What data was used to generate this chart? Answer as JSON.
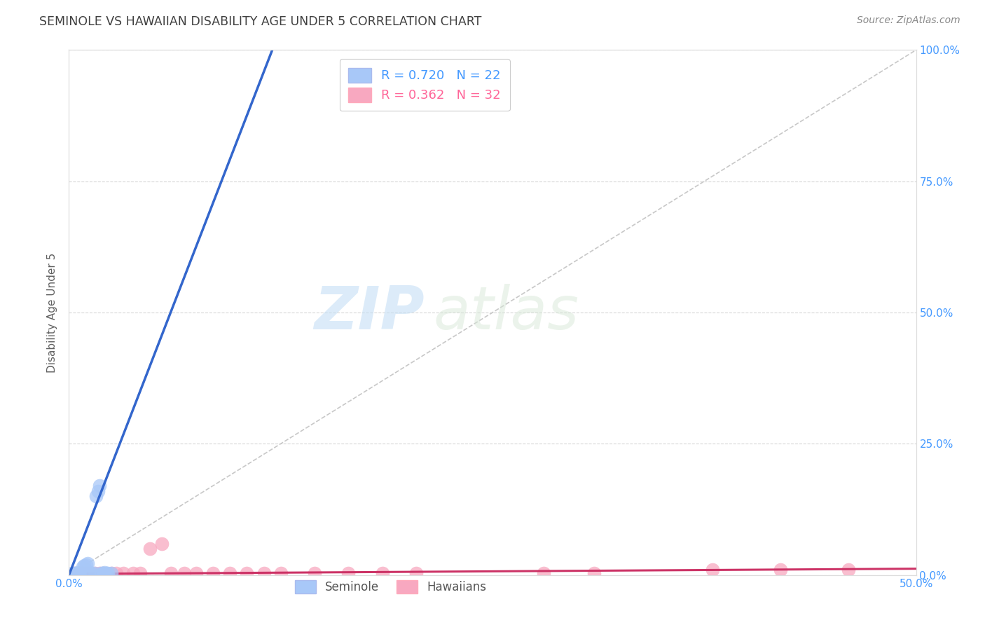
{
  "title": "SEMINOLE VS HAWAIIAN DISABILITY AGE UNDER 5 CORRELATION CHART",
  "source": "Source: ZipAtlas.com",
  "ylabel": "Disability Age Under 5",
  "xlim": [
    0.0,
    0.5
  ],
  "ylim": [
    0.0,
    1.0
  ],
  "xticks": [
    0.0,
    0.1,
    0.2,
    0.3,
    0.4,
    0.5
  ],
  "xticklabels": [
    "0.0%",
    "",
    "",
    "",
    "",
    "50.0%"
  ],
  "yticks": [
    0.0,
    0.25,
    0.5,
    0.75,
    1.0
  ],
  "yticklabels_right": [
    "0.0%",
    "25.0%",
    "50.0%",
    "75.0%",
    "100.0%"
  ],
  "diagonal_line": {
    "x": [
      0.0,
      0.5
    ],
    "y": [
      0.0,
      1.0
    ],
    "color": "#c8c8c8",
    "linestyle": "dashed"
  },
  "seminole": {
    "label": "Seminole",
    "color": "#a8c8f8",
    "line_color": "#3366cc",
    "scatter_x": [
      0.002,
      0.003,
      0.004,
      0.005,
      0.006,
      0.007,
      0.008,
      0.009,
      0.01,
      0.011,
      0.012,
      0.013,
      0.015,
      0.016,
      0.017,
      0.018,
      0.019,
      0.02,
      0.021,
      0.022,
      0.023,
      0.025
    ],
    "scatter_y": [
      0.003,
      0.004,
      0.003,
      0.005,
      0.004,
      0.003,
      0.015,
      0.018,
      0.02,
      0.022,
      0.005,
      0.003,
      0.004,
      0.15,
      0.16,
      0.17,
      0.004,
      0.003,
      0.005,
      0.004,
      0.003,
      0.004
    ],
    "trendline_x": [
      0.0,
      0.12
    ],
    "trendline_y": [
      0.0,
      1.0
    ]
  },
  "hawaiians": {
    "label": "Hawaiians",
    "color": "#f8a8c0",
    "line_color": "#cc3366",
    "scatter_x": [
      0.003,
      0.006,
      0.008,
      0.01,
      0.012,
      0.015,
      0.018,
      0.02,
      0.025,
      0.028,
      0.032,
      0.038,
      0.042,
      0.048,
      0.055,
      0.06,
      0.068,
      0.075,
      0.085,
      0.095,
      0.105,
      0.115,
      0.125,
      0.145,
      0.165,
      0.185,
      0.205,
      0.28,
      0.31,
      0.38,
      0.42,
      0.46
    ],
    "scatter_y": [
      0.003,
      0.004,
      0.003,
      0.004,
      0.003,
      0.004,
      0.003,
      0.004,
      0.003,
      0.004,
      0.003,
      0.004,
      0.003,
      0.05,
      0.06,
      0.003,
      0.004,
      0.003,
      0.004,
      0.003,
      0.004,
      0.003,
      0.004,
      0.003,
      0.004,
      0.003,
      0.004,
      0.003,
      0.004,
      0.01,
      0.01,
      0.01
    ],
    "trendline_x": [
      0.0,
      0.5
    ],
    "trendline_y": [
      0.002,
      0.012
    ]
  },
  "watermark_zip": "ZIP",
  "watermark_atlas": "atlas",
  "background_color": "#ffffff",
  "grid_color": "#d8d8d8",
  "title_color": "#404040",
  "axis_color": "#4499ff",
  "axis_label_color": "#606060",
  "legend_r1_text": "R = 0.720   N = 22",
  "legend_r2_text": "R = 0.362   N = 32",
  "legend_r1_color": "#4499ff",
  "legend_r2_color": "#ff6699",
  "seminole_patch_color": "#a8c8f8",
  "hawaiians_patch_color": "#f8a8c0"
}
